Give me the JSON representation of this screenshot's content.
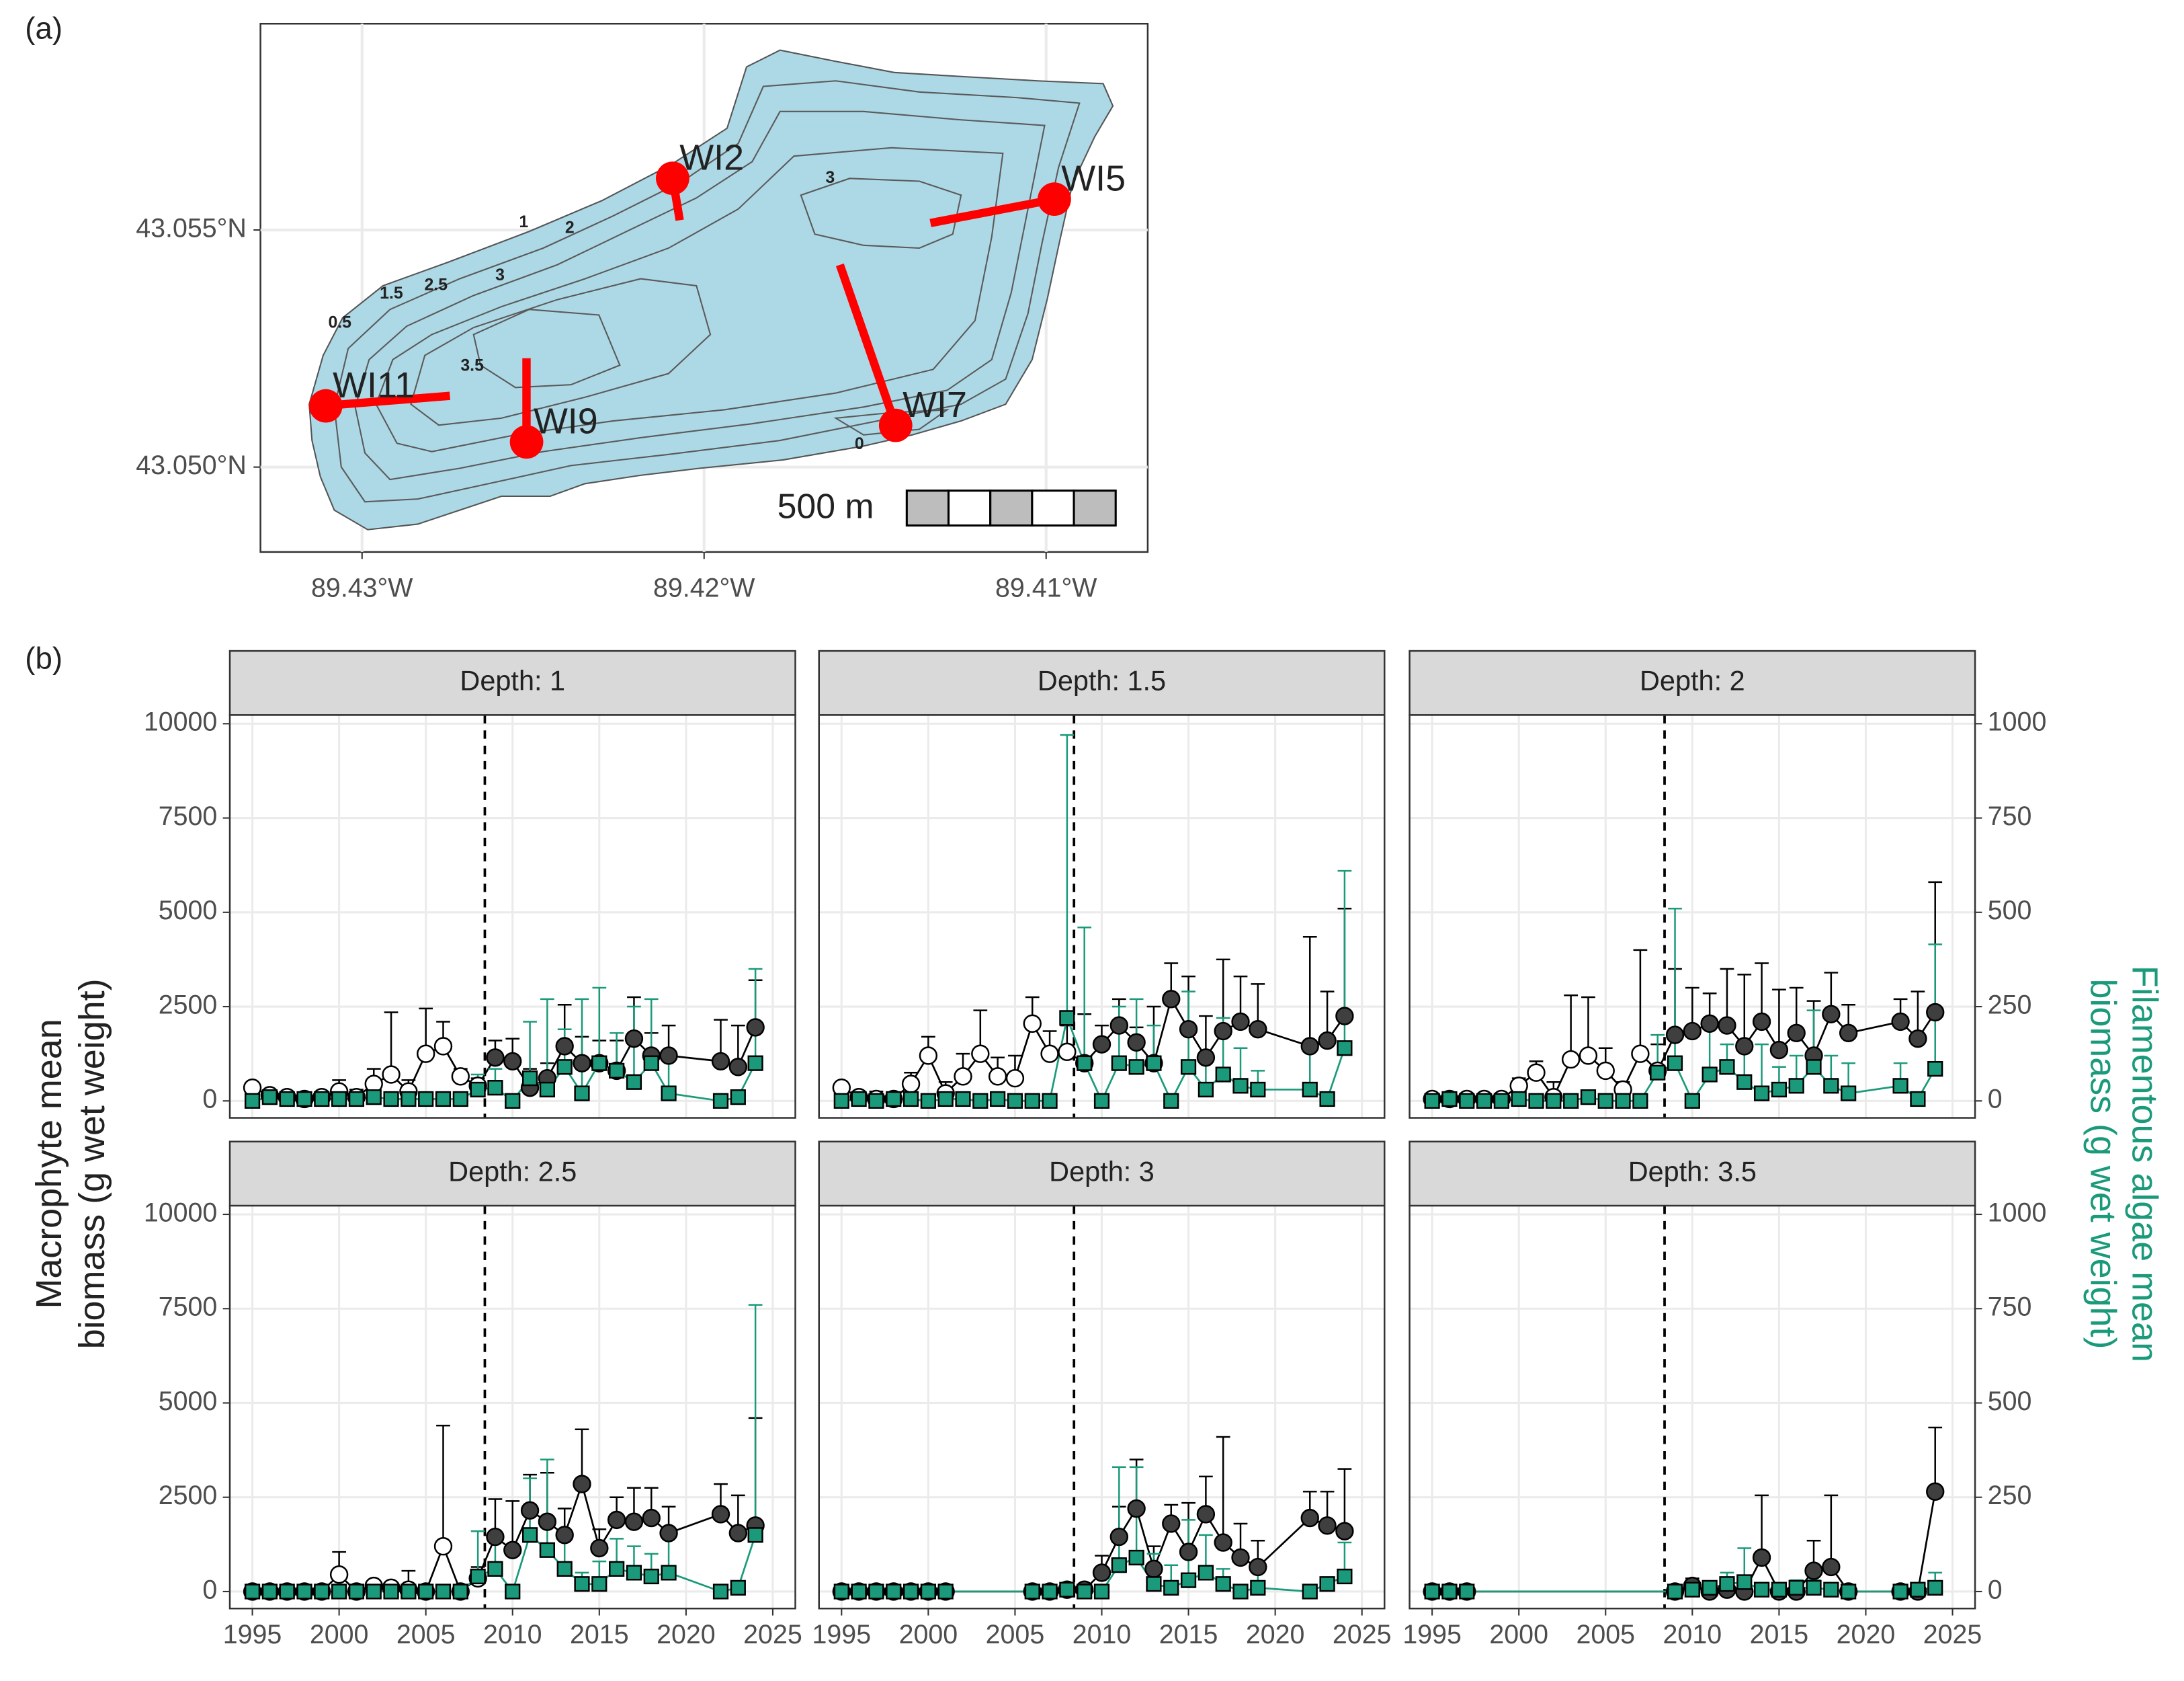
{
  "panel_labels": [
    "(a)",
    "(b)"
  ],
  "map": {
    "xlim": [
      -89.43297,
      -89.40703
    ],
    "ylim": [
      43.04821,
      43.05935
    ],
    "xticks": [
      {
        "value": -89.43,
        "label": "89.43°W"
      },
      {
        "value": -89.42,
        "label": "89.42°W"
      },
      {
        "value": -89.41,
        "label": "89.41°W"
      }
    ],
    "yticks": [
      {
        "value": 43.05,
        "label": "43.050°N"
      },
      {
        "value": 43.055,
        "label": "43.055°N"
      }
    ],
    "site_color": "#ff0000",
    "sites": [
      {
        "name": "WI2",
        "lon": -89.42092,
        "lat": 43.05609
      },
      {
        "name": "WI5",
        "lon": -89.40976,
        "lat": 43.05565
      },
      {
        "name": "WI7",
        "lon": -89.4144,
        "lat": 43.05088
      },
      {
        "name": "WI9",
        "lon": -89.42519,
        "lat": 43.05053
      },
      {
        "name": "WI11",
        "lon": -89.43106,
        "lat": 43.05129
      }
    ],
    "contour_labels": [
      "0.5",
      "1",
      "2",
      "1.5",
      "2.5",
      "3",
      "3.5",
      "3",
      "0"
    ],
    "scale_label": "500 m"
  },
  "chart_data": {
    "type": "line",
    "xlim": [
      1993.7,
      2026.3
    ],
    "ylim": [
      -450,
      10230
    ],
    "y2lim": [
      -45,
      1023
    ],
    "xticks": [
      1995,
      2000,
      2005,
      2010,
      2015,
      2020,
      2025
    ],
    "yticks": [
      0,
      2500,
      5000,
      7500,
      10000
    ],
    "y2ticks": [
      0,
      250,
      500,
      750,
      1000
    ],
    "ylabel": [
      "Macrophyte mean",
      "biomass (g wet weight)"
    ],
    "y2label": [
      "Filamentous algae mean",
      "biomass (g wet weight)"
    ],
    "y2color": "#1a9a7a",
    "vline": 2008.4,
    "grid": true,
    "facets": [
      {
        "title": "Depth: 1",
        "x": [
          1995,
          1996,
          1997,
          1998,
          1999,
          2000,
          2001,
          2002,
          2003,
          2004,
          2005,
          2006,
          2007,
          2008,
          2009,
          2010,
          2011,
          2012,
          2013,
          2014,
          2015,
          2016,
          2017,
          2018,
          2019,
          2022,
          2023,
          2024
        ],
        "series": [
          {
            "marker": "circle",
            "color": "#000000",
            "fill": "#3f3f3f",
            "fill_before": "#ffffff",
            "values": [
              350,
              150,
              100,
              50,
              100,
              250,
              100,
              450,
              700,
              250,
              1250,
              1450,
              650,
              400,
              1150,
              1050,
              350,
              600,
              1450,
              1000,
              1000,
              800,
              1650,
              1200,
              1200,
              1050,
              900,
              1950
            ],
            "errors": [
              0,
              100,
              100,
              50,
              100,
              300,
              200,
              400,
              1650,
              300,
              1200,
              650,
              200,
              200,
              450,
              600,
              500,
              400,
              1100,
              700,
              600,
              800,
              1100,
              600,
              800,
              1100,
              1100,
              1250
            ]
          },
          {
            "marker": "square",
            "axis": "y2",
            "color": "#1a9a7a",
            "fill": "#1a9a7a",
            "values": [
              0,
              10,
              5,
              5,
              5,
              5,
              5,
              10,
              5,
              5,
              5,
              5,
              5,
              30,
              35,
              0,
              60,
              30,
              90,
              20,
              100,
              80,
              50,
              100,
              20,
              0,
              10,
              100
            ],
            "errors": [
              0,
              10,
              5,
              5,
              5,
              5,
              5,
              20,
              5,
              5,
              5,
              5,
              5,
              40,
              50,
              0,
              150,
              240,
              100,
              250,
              200,
              100,
              200,
              170,
              100,
              0,
              0,
              250
            ]
          }
        ]
      },
      {
        "title": "Depth: 1.5",
        "x": [
          1995,
          1996,
          1997,
          1998,
          1999,
          2000,
          2001,
          2002,
          2003,
          2004,
          2005,
          2006,
          2007,
          2008,
          2009,
          2010,
          2011,
          2012,
          2013,
          2014,
          2015,
          2016,
          2017,
          2018,
          2019,
          2022,
          2023,
          2024
        ],
        "series": [
          {
            "marker": "circle",
            "color": "#000000",
            "fill": "#3f3f3f",
            "fill_before": "#ffffff",
            "values": [
              350,
              100,
              50,
              50,
              450,
              1200,
              200,
              650,
              1250,
              650,
              600,
              2050,
              1250,
              1300,
              1000,
              1500,
              2000,
              1550,
              1000,
              2700,
              1900,
              1150,
              1850,
              2100,
              1900,
              1450,
              1600,
              2250
            ],
            "errors": [
              0,
              100,
              200,
              100,
              300,
              500,
              300,
              600,
              1150,
              500,
              600,
              700,
              600,
              700,
              1300,
              500,
              700,
              400,
              1500,
              950,
              1400,
              1100,
              1900,
              1200,
              1200,
              2900,
              1300,
              2850
            ]
          },
          {
            "marker": "square",
            "axis": "y2",
            "color": "#1a9a7a",
            "fill": "#1a9a7a",
            "values": [
              0,
              5,
              0,
              5,
              5,
              0,
              5,
              5,
              0,
              5,
              0,
              0,
              0,
              220,
              100,
              0,
              100,
              90,
              100,
              0,
              90,
              30,
              70,
              40,
              30,
              30,
              5,
              140
            ],
            "errors": [
              0,
              5,
              0,
              5,
              5,
              0,
              5,
              5,
              0,
              5,
              0,
              0,
              0,
              750,
              360,
              0,
              150,
              180,
              100,
              0,
              200,
              100,
              150,
              100,
              50,
              100,
              0,
              470
            ]
          }
        ]
      },
      {
        "title": "Depth: 2",
        "x": [
          1995,
          1996,
          1997,
          1998,
          1999,
          2000,
          2001,
          2002,
          2003,
          2004,
          2005,
          2006,
          2007,
          2008,
          2009,
          2010,
          2011,
          2012,
          2013,
          2014,
          2015,
          2016,
          2017,
          2018,
          2019,
          2022,
          2023,
          2024
        ],
        "series": [
          {
            "marker": "circle",
            "color": "#000000",
            "fill": "#3f3f3f",
            "fill_before": "#ffffff",
            "values": [
              50,
              50,
              50,
              50,
              50,
              400,
              750,
              100,
              1100,
              1200,
              800,
              300,
              1250,
              800,
              1750,
              1850,
              2050,
              2000,
              1450,
              2100,
              1350,
              1800,
              1200,
              2300,
              1800,
              2100,
              1650,
              2350
            ],
            "errors": [
              100,
              150,
              100,
              100,
              100,
              200,
              300,
              400,
              1700,
              1550,
              600,
              200,
              2750,
              700,
              1750,
              1150,
              800,
              1500,
              1900,
              1550,
              1600,
              1200,
              1450,
              1100,
              750,
              600,
              1250,
              3450
            ]
          },
          {
            "marker": "square",
            "axis": "y2",
            "color": "#1a9a7a",
            "fill": "#1a9a7a",
            "values": [
              0,
              5,
              0,
              0,
              0,
              5,
              0,
              0,
              0,
              10,
              0,
              0,
              0,
              75,
              100,
              0,
              70,
              90,
              50,
              20,
              30,
              40,
              90,
              40,
              20,
              40,
              5,
              85
            ],
            "errors": [
              0,
              5,
              0,
              0,
              0,
              5,
              0,
              0,
              0,
              10,
              0,
              0,
              0,
              100,
              410,
              0,
              120,
              60,
              100,
              130,
              60,
              80,
              150,
              80,
              80,
              60,
              10,
              330
            ]
          }
        ]
      },
      {
        "title": "Depth: 2.5",
        "x": [
          1995,
          1996,
          1997,
          1998,
          1999,
          2000,
          2001,
          2002,
          2003,
          2004,
          2005,
          2006,
          2007,
          2008,
          2009,
          2010,
          2011,
          2012,
          2013,
          2014,
          2015,
          2016,
          2017,
          2018,
          2019,
          2022,
          2023,
          2024
        ],
        "series": [
          {
            "marker": "circle",
            "color": "#000000",
            "fill": "#3f3f3f",
            "fill_before": "#ffffff",
            "values": [
              0,
              0,
              0,
              0,
              0,
              450,
              0,
              150,
              100,
              50,
              0,
              1200,
              0,
              350,
              1450,
              1100,
              2150,
              1850,
              1500,
              2850,
              1150,
              1900,
              1850,
              1950,
              1550,
              2050,
              1550,
              1750
            ],
            "errors": [
              0,
              0,
              0,
              0,
              0,
              600,
              0,
              0,
              50,
              500,
              0,
              3200,
              0,
              300,
              1000,
              1300,
              950,
              1300,
              700,
              1450,
              500,
              600,
              900,
              800,
              700,
              800,
              1000,
              2850
            ]
          },
          {
            "marker": "square",
            "axis": "y2",
            "color": "#1a9a7a",
            "fill": "#1a9a7a",
            "values": [
              0,
              0,
              0,
              0,
              0,
              0,
              0,
              0,
              0,
              0,
              0,
              0,
              0,
              40,
              60,
              0,
              150,
              110,
              60,
              20,
              20,
              60,
              50,
              40,
              50,
              0,
              10,
              150
            ],
            "errors": [
              0,
              0,
              0,
              0,
              0,
              0,
              0,
              0,
              0,
              0,
              0,
              0,
              0,
              120,
              80,
              0,
              150,
              240,
              90,
              30,
              60,
              80,
              70,
              60,
              100,
              0,
              0,
              610
            ]
          }
        ]
      },
      {
        "title": "Depth: 3",
        "x": [
          1995,
          1996,
          1997,
          1998,
          1999,
          2000,
          2001,
          2006,
          2007,
          2008,
          2009,
          2010,
          2011,
          2012,
          2013,
          2014,
          2015,
          2016,
          2017,
          2018,
          2019,
          2022,
          2023,
          2024
        ],
        "series": [
          {
            "marker": "circle",
            "color": "#000000",
            "fill": "#3f3f3f",
            "fill_before": "#ffffff",
            "values": [
              0,
              0,
              0,
              0,
              0,
              0,
              0,
              0,
              0,
              50,
              50,
              500,
              1450,
              2200,
              600,
              1800,
              1050,
              2050,
              1300,
              900,
              650,
              1950,
              1750,
              1600
            ],
            "errors": [
              0,
              0,
              0,
              0,
              0,
              0,
              0,
              0,
              0,
              0,
              0,
              450,
              800,
              1300,
              600,
              500,
              1300,
              1000,
              2800,
              900,
              700,
              700,
              900,
              1650
            ]
          },
          {
            "marker": "square",
            "axis": "y2",
            "color": "#1a9a7a",
            "fill": "#1a9a7a",
            "values": [
              0,
              0,
              0,
              0,
              0,
              0,
              0,
              0,
              0,
              5,
              0,
              0,
              70,
              90,
              20,
              10,
              30,
              50,
              20,
              0,
              10,
              0,
              20,
              40
            ],
            "errors": [
              0,
              0,
              0,
              0,
              0,
              0,
              0,
              0,
              0,
              0,
              0,
              0,
              260,
              240,
              80,
              60,
              160,
              100,
              40,
              0,
              40,
              0,
              0,
              90
            ]
          }
        ]
      },
      {
        "title": "Depth: 3.5",
        "x": [
          1995,
          1996,
          1997,
          2009,
          2010,
          2011,
          2012,
          2013,
          2014,
          2015,
          2016,
          2017,
          2018,
          2019,
          2022,
          2023,
          2024
        ],
        "series": [
          {
            "marker": "circle",
            "color": "#000000",
            "fill": "#3f3f3f",
            "fill_before": "#ffffff",
            "values": [
              0,
              0,
              0,
              0,
              150,
              0,
              50,
              0,
              900,
              0,
              0,
              550,
              650,
              0,
              0,
              0,
              2650
            ],
            "errors": [
              0,
              0,
              0,
              0,
              200,
              0,
              100,
              0,
              1650,
              0,
              0,
              800,
              1900,
              0,
              0,
              0,
              1700
            ]
          },
          {
            "marker": "square",
            "axis": "y2",
            "color": "#1a9a7a",
            "fill": "#1a9a7a",
            "values": [
              0,
              0,
              0,
              0,
              5,
              10,
              20,
              25,
              5,
              5,
              10,
              10,
              5,
              0,
              0,
              5,
              10
            ],
            "errors": [
              0,
              0,
              0,
              0,
              10,
              10,
              30,
              90,
              10,
              10,
              20,
              20,
              10,
              0,
              0,
              10,
              40
            ]
          }
        ]
      }
    ]
  }
}
